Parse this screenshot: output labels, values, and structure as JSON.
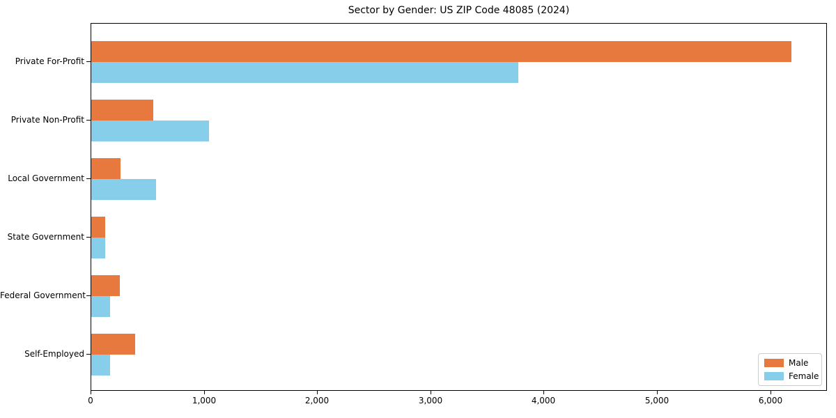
{
  "chart_data": {
    "type": "bar",
    "orientation": "horizontal",
    "title": "Sector by Gender: US ZIP Code 48085 (2024)",
    "categories": [
      "Private For-Profit",
      "Private Non-Profit",
      "Local Government",
      "State Government",
      "Federal Government",
      "Self-Employed"
    ],
    "series": [
      {
        "name": "Male",
        "color": "#e8793e",
        "values": [
          6180,
          550,
          260,
          125,
          250,
          390
        ]
      },
      {
        "name": "Female",
        "color": "#87ceeb",
        "values": [
          3770,
          1040,
          570,
          120,
          165,
          165
        ]
      }
    ],
    "xlabel": "",
    "ylabel": "",
    "xlim": [
      0,
      6500
    ],
    "xticks": [
      0,
      1000,
      2000,
      3000,
      4000,
      5000,
      6000
    ],
    "xtick_labels": [
      "0",
      "1,000",
      "2,000",
      "3,000",
      "4,000",
      "5,000",
      "6,000"
    ],
    "grid": false,
    "legend": {
      "position": "lower right",
      "entries": [
        "Male",
        "Female"
      ]
    }
  }
}
